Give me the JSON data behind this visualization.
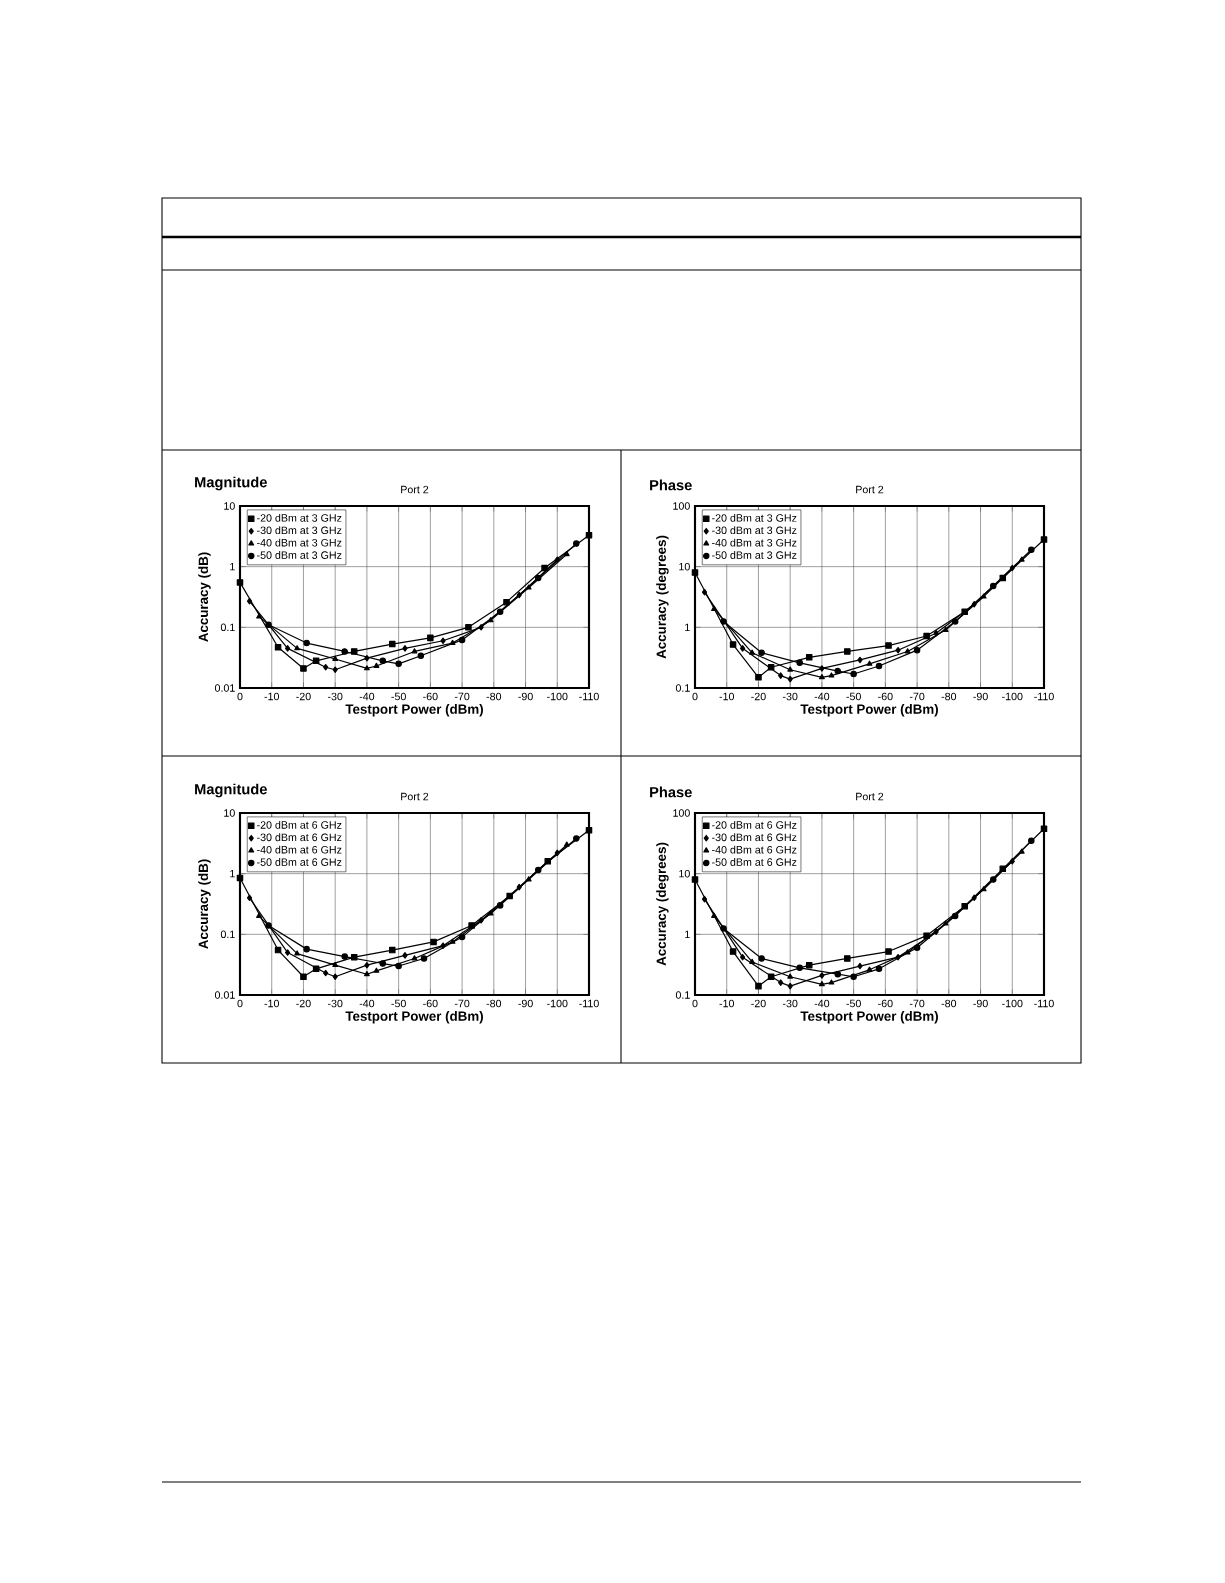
{
  "chart_data": [
    {
      "type": "line",
      "title": "Magnitude",
      "subtitle": "Port 2",
      "xlabel": "Testport Power (dBm)",
      "ylabel": "Accuracy (dB)",
      "log": "y",
      "grid": true,
      "legend": "top left",
      "xlim": [
        0,
        -110
      ],
      "xticks": [
        0,
        -10,
        -20,
        -30,
        -40,
        -50,
        -60,
        -70,
        -80,
        -90,
        -100,
        -110
      ],
      "ylim": [
        0.01,
        10
      ],
      "yticks": [
        0.01,
        0.1,
        1,
        10
      ],
      "series": [
        {
          "name": "-20 dBm at 3 GHz",
          "color": "#000000",
          "marker": "square",
          "x": [
            0,
            -12,
            -20,
            -24,
            -36,
            -48,
            -60,
            -72,
            -84,
            -96,
            -110
          ],
          "values": [
            0.55,
            0.047,
            0.021,
            0.028,
            0.04,
            0.053,
            0.067,
            0.1,
            0.26,
            0.95,
            3.3
          ]
        },
        {
          "name": "-30 dBm at 3 GHz",
          "color": "#000000",
          "marker": "diamond",
          "x": [
            -3,
            -15,
            -27,
            -30,
            -40,
            -52,
            -64,
            -76,
            -88,
            -100
          ],
          "values": [
            0.27,
            0.045,
            0.022,
            0.02,
            0.031,
            0.045,
            0.06,
            0.1,
            0.34,
            1.3
          ]
        },
        {
          "name": "-40 dBm at 3 GHz",
          "color": "#000000",
          "marker": "triangle",
          "x": [
            -6,
            -18,
            -30,
            -40,
            -43,
            -55,
            -67,
            -79,
            -91,
            -103
          ],
          "values": [
            0.15,
            0.045,
            0.03,
            0.021,
            0.023,
            0.04,
            0.055,
            0.13,
            0.45,
            1.6
          ]
        },
        {
          "name": "-50 dBm at 3 GHz",
          "color": "#000000",
          "marker": "circle",
          "x": [
            -9,
            -21,
            -33,
            -45,
            -50,
            -57,
            -70,
            -82,
            -94,
            -106
          ],
          "values": [
            0.11,
            0.055,
            0.04,
            0.028,
            0.025,
            0.034,
            0.062,
            0.18,
            0.65,
            2.4
          ]
        }
      ]
    },
    {
      "type": "line",
      "title": "Phase",
      "subtitle": "Port 2",
      "xlabel": "Testport Power (dBm)",
      "ylabel": "Accuracy (degrees)",
      "log": "y",
      "grid": true,
      "legend": "top left",
      "xlim": [
        0,
        -110
      ],
      "xticks": [
        0,
        -10,
        -20,
        -30,
        -40,
        -50,
        -60,
        -70,
        -80,
        -90,
        -100,
        -110
      ],
      "ylim": [
        0.1,
        100
      ],
      "yticks": [
        0.1,
        1,
        10,
        100
      ],
      "series": [
        {
          "name": "-20 dBm at 3 GHz",
          "color": "#000000",
          "marker": "square",
          "x": [
            0,
            -12,
            -20,
            -24,
            -36,
            -48,
            -61,
            -73,
            -85,
            -97,
            -110
          ],
          "values": [
            8,
            0.52,
            0.15,
            0.22,
            0.32,
            0.4,
            0.5,
            0.72,
            1.8,
            6.5,
            28
          ]
        },
        {
          "name": "-30 dBm at 3 GHz",
          "color": "#000000",
          "marker": "diamond",
          "x": [
            -3,
            -15,
            -27,
            -30,
            -40,
            -52,
            -64,
            -76,
            -88,
            -100
          ],
          "values": [
            3.8,
            0.45,
            0.16,
            0.14,
            0.21,
            0.29,
            0.42,
            0.8,
            2.4,
            9.5
          ]
        },
        {
          "name": "-40 dBm at 3 GHz",
          "color": "#000000",
          "marker": "triangle",
          "x": [
            -6,
            -18,
            -30,
            -40,
            -43,
            -55,
            -67,
            -79,
            -91,
            -103
          ],
          "values": [
            2,
            0.38,
            0.2,
            0.15,
            0.16,
            0.25,
            0.4,
            0.9,
            3.2,
            13
          ]
        },
        {
          "name": "-50 dBm at 3 GHz",
          "color": "#000000",
          "marker": "circle",
          "x": [
            -9,
            -21,
            -33,
            -45,
            -50,
            -58,
            -70,
            -82,
            -94,
            -106
          ],
          "values": [
            1.25,
            0.38,
            0.26,
            0.19,
            0.17,
            0.23,
            0.42,
            1.25,
            4.8,
            19
          ]
        }
      ]
    },
    {
      "type": "line",
      "title": "Magnitude",
      "subtitle": "Port 2",
      "xlabel": "Testport Power (dBm)",
      "ylabel": "Accuracy (dB)",
      "log": "y",
      "grid": true,
      "legend": "top left",
      "xlim": [
        0,
        -110
      ],
      "xticks": [
        0,
        -10,
        -20,
        -30,
        -40,
        -50,
        -60,
        -70,
        -80,
        -90,
        -100,
        -110
      ],
      "ylim": [
        0.01,
        10
      ],
      "yticks": [
        0.01,
        0.1,
        1,
        10
      ],
      "series": [
        {
          "name": "-20 dBm at 6 GHz",
          "color": "#000000",
          "marker": "square",
          "x": [
            0,
            -12,
            -20,
            -24,
            -36,
            -48,
            -61,
            -73,
            -85,
            -97,
            -110
          ],
          "values": [
            0.85,
            0.055,
            0.02,
            0.027,
            0.042,
            0.055,
            0.075,
            0.14,
            0.43,
            1.6,
            5.2
          ]
        },
        {
          "name": "-30 dBm at 6 GHz",
          "color": "#000000",
          "marker": "diamond",
          "x": [
            -3,
            -15,
            -27,
            -30,
            -40,
            -52,
            -64,
            -76,
            -88,
            -100
          ],
          "values": [
            0.4,
            0.05,
            0.023,
            0.02,
            0.031,
            0.045,
            0.065,
            0.17,
            0.6,
            2.2
          ]
        },
        {
          "name": "-40 dBm at 6 GHz",
          "color": "#000000",
          "marker": "triangle",
          "x": [
            -6,
            -18,
            -30,
            -40,
            -43,
            -55,
            -67,
            -79,
            -91,
            -103
          ],
          "values": [
            0.2,
            0.048,
            0.031,
            0.022,
            0.025,
            0.04,
            0.075,
            0.22,
            0.8,
            3
          ]
        },
        {
          "name": "-50 dBm at 6 GHz",
          "color": "#000000",
          "marker": "circle",
          "x": [
            -9,
            -21,
            -33,
            -45,
            -50,
            -58,
            -70,
            -82,
            -94,
            -106
          ],
          "values": [
            0.14,
            0.057,
            0.043,
            0.033,
            0.03,
            0.04,
            0.09,
            0.3,
            1.15,
            3.8
          ]
        }
      ]
    },
    {
      "type": "line",
      "title": "Phase",
      "subtitle": "Port 2",
      "xlabel": "Testport Power (dBm)",
      "ylabel": "Accuracy (degrees)",
      "log": "y",
      "grid": true,
      "legend": "top left",
      "xlim": [
        0,
        -110
      ],
      "xticks": [
        0,
        -10,
        -20,
        -30,
        -40,
        -50,
        -60,
        -70,
        -80,
        -90,
        -100,
        -110
      ],
      "ylim": [
        0.1,
        100
      ],
      "yticks": [
        0.1,
        1,
        10,
        100
      ],
      "series": [
        {
          "name": "-20 dBm at 6 GHz",
          "color": "#000000",
          "marker": "square",
          "x": [
            0,
            -12,
            -20,
            -24,
            -36,
            -48,
            -61,
            -73,
            -85,
            -97,
            -110
          ],
          "values": [
            8,
            0.52,
            0.14,
            0.2,
            0.31,
            0.4,
            0.52,
            0.95,
            2.9,
            12,
            55
          ]
        },
        {
          "name": "-30 dBm at 6 GHz",
          "color": "#000000",
          "marker": "diamond",
          "x": [
            -3,
            -15,
            -27,
            -30,
            -40,
            -52,
            -64,
            -76,
            -88,
            -100
          ],
          "values": [
            3.8,
            0.42,
            0.16,
            0.14,
            0.21,
            0.3,
            0.42,
            1.1,
            4,
            16
          ]
        },
        {
          "name": "-40 dBm at 6 GHz",
          "color": "#000000",
          "marker": "triangle",
          "x": [
            -6,
            -18,
            -30,
            -40,
            -43,
            -55,
            -67,
            -79,
            -91,
            -103
          ],
          "values": [
            2,
            0.35,
            0.2,
            0.15,
            0.16,
            0.26,
            0.5,
            1.5,
            5.5,
            23
          ]
        },
        {
          "name": "-50 dBm at 6 GHz",
          "color": "#000000",
          "marker": "circle",
          "x": [
            -9,
            -21,
            -33,
            -45,
            -50,
            -58,
            -70,
            -82,
            -94,
            -106
          ],
          "values": [
            1.25,
            0.4,
            0.28,
            0.22,
            0.2,
            0.27,
            0.6,
            2,
            8,
            35
          ]
        }
      ]
    }
  ]
}
